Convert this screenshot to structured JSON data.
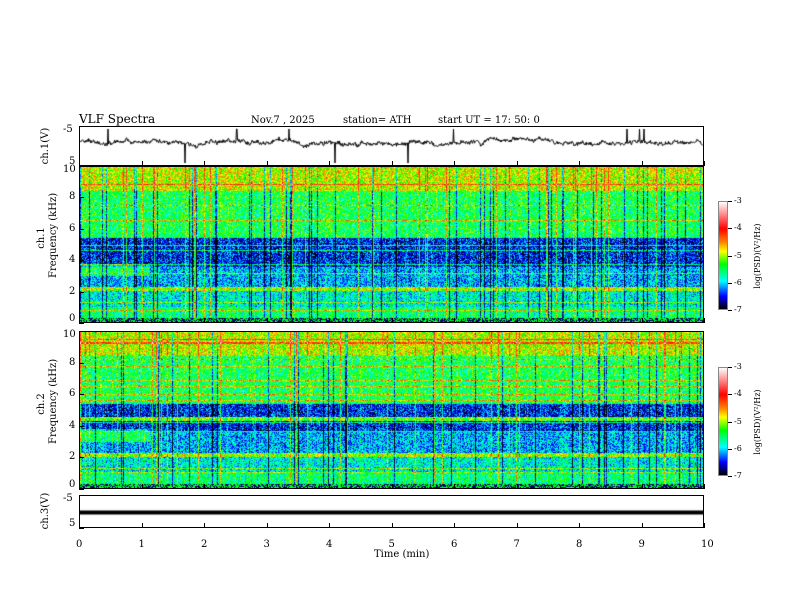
{
  "header": {
    "title": "VLF  Spectra",
    "date": "Nov.7  , 2025",
    "station": "station= ATH",
    "start": "start  UT  =   17: 50: 0"
  },
  "chart_data": [
    {
      "type": "line",
      "ylabel": "ch.1(V)",
      "ylim": [
        -5,
        5
      ],
      "yticks": [
        "5",
        "-5"
      ],
      "xlim": [
        0,
        10
      ]
    },
    {
      "type": "heatmap",
      "ylabel": "ch.1\nFrequency (kHz)",
      "ylim": [
        0,
        10
      ],
      "yticks": [
        "0",
        "2",
        "4",
        "6",
        "8",
        "10"
      ],
      "xlim": [
        0,
        10
      ],
      "colorbar": {
        "label": "log(PSD)(V²/Hz)",
        "range": [
          -7,
          -3
        ],
        "ticks": [
          "-3",
          "-4",
          "-5",
          "-6",
          "-7"
        ]
      }
    },
    {
      "type": "heatmap",
      "ylabel": "ch.2\nFrequency (kHz)",
      "ylim": [
        0,
        10
      ],
      "yticks": [
        "0",
        "2",
        "4",
        "6",
        "8",
        "10"
      ],
      "xlim": [
        0,
        10
      ],
      "colorbar": {
        "label": "log(PSD)(V²/Hz)",
        "range": [
          -7,
          -3
        ],
        "ticks": [
          "-3",
          "-4",
          "-5",
          "-6",
          "-7"
        ]
      }
    },
    {
      "type": "line",
      "ylabel": "ch.3(V)",
      "ylim": [
        -5,
        5
      ],
      "yticks": [
        "5",
        "-5"
      ],
      "xlim": [
        0,
        10
      ],
      "xlabel": "Time  (min)",
      "xticks": [
        "0",
        "1",
        "2",
        "3",
        "4",
        "5",
        "6",
        "7",
        "8",
        "9",
        "10"
      ]
    }
  ],
  "labels": {
    "ch1v": "ch.1(V)",
    "ch1f_a": "ch.1",
    "ch1f_b": "Frequency  (kHz)",
    "ch2f_a": "ch.2",
    "ch2f_b": "Frequency  (kHz)",
    "ch3v": "ch.3(V)",
    "cbar": "log(PSD)(V²/Hz)",
    "xlabel": "Time  (min)"
  },
  "colors": {
    "trace": "#000000"
  }
}
